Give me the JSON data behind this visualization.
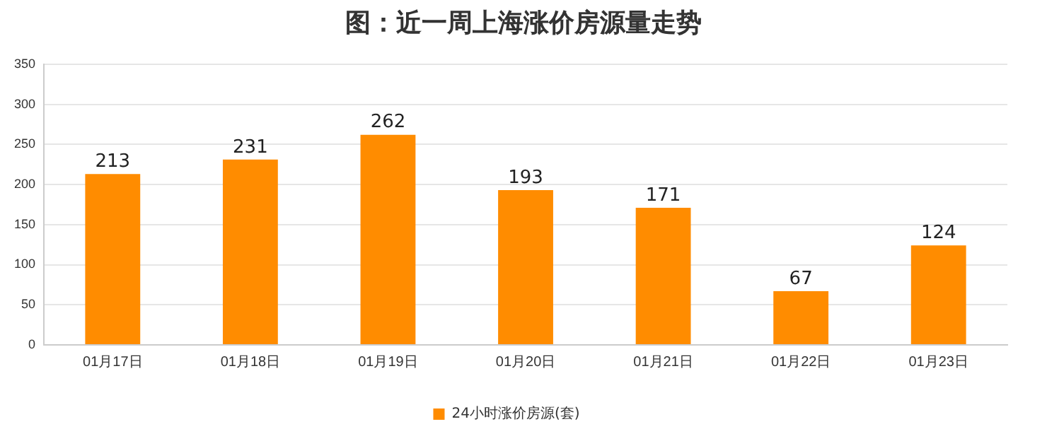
{
  "chart_data": {
    "type": "bar",
    "title": "图：近一周上海涨价房源量走势",
    "categories": [
      "01月17日",
      "01月18日",
      "01月19日",
      "01月20日",
      "01月21日",
      "01月22日",
      "01月23日"
    ],
    "series": [
      {
        "name": "24小时涨价房源(套)",
        "color": "#ff8c00",
        "values": [
          213,
          231,
          262,
          193,
          171,
          67,
          124
        ]
      }
    ],
    "ylim": [
      0,
      350
    ],
    "yticks": [
      0,
      50,
      100,
      150,
      200,
      250,
      300,
      350
    ],
    "grid": "y",
    "legend": "bottom",
    "data_labels": true
  }
}
